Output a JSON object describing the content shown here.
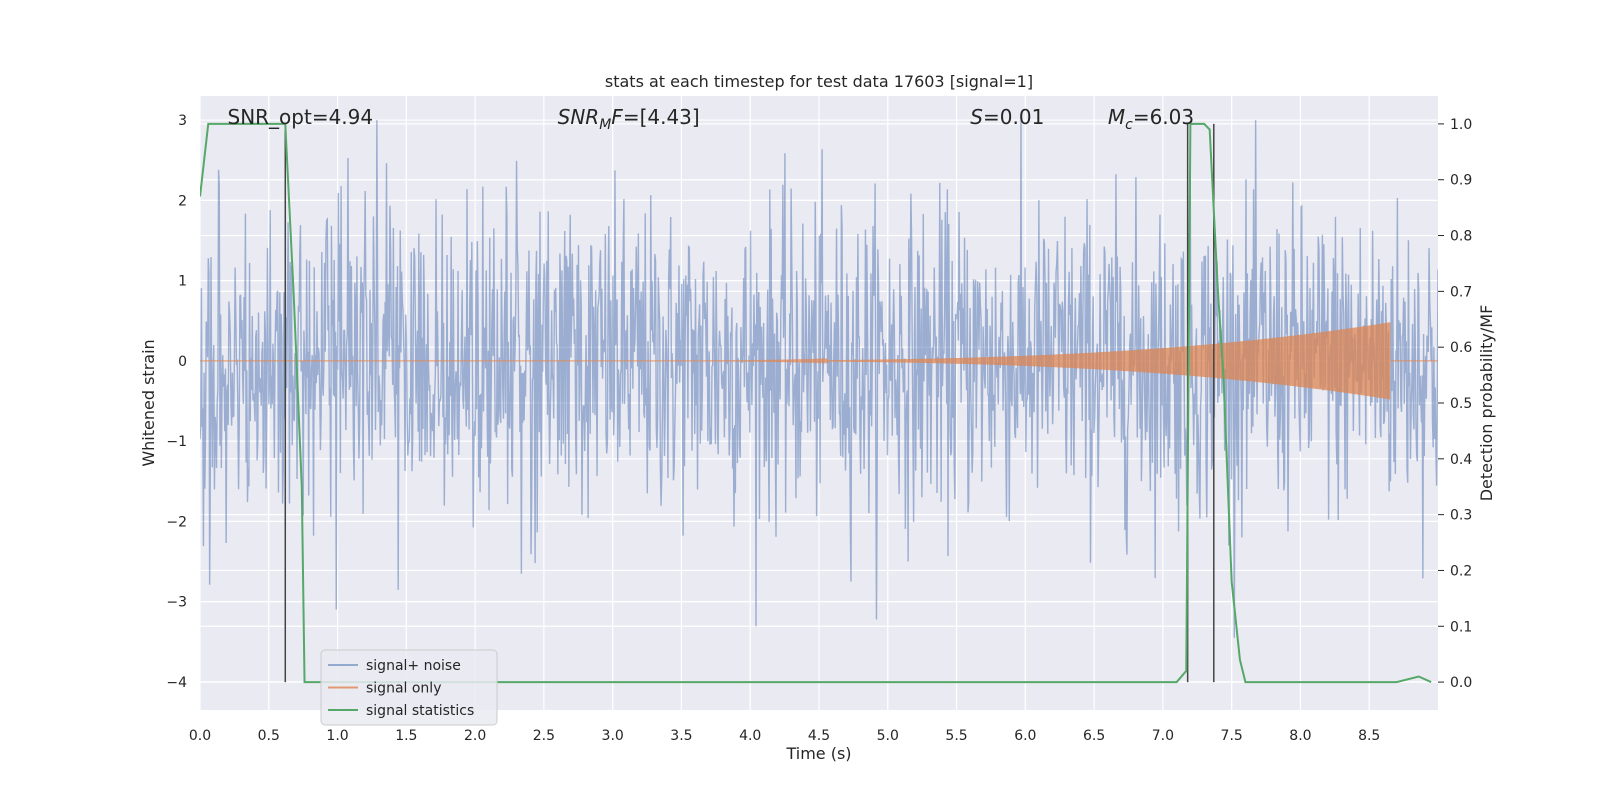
{
  "chart_data": {
    "type": "line",
    "title": "stats at each timestep for test data 17603 [signal=1]",
    "xlabel": "Time (s)",
    "ylabel_left": "Whitened strain",
    "ylabel_right": "Detection probability/MF",
    "xlim": [
      0.0,
      9.0
    ],
    "ylim_left": [
      -4.35,
      3.3
    ],
    "ylim_right": [
      -0.05,
      1.05
    ],
    "xticks": [
      "0.0",
      "0.5",
      "1.0",
      "1.5",
      "2.0",
      "2.5",
      "3.0",
      "3.5",
      "4.0",
      "4.5",
      "5.0",
      "5.5",
      "6.0",
      "6.5",
      "7.0",
      "7.5",
      "8.0",
      "8.5"
    ],
    "yticks_left": [
      "3",
      "2",
      "1",
      "0",
      "−1",
      "−2",
      "−3",
      "−4"
    ],
    "yticks_right": [
      "1.0",
      "0.9",
      "0.8",
      "0.7",
      "0.6",
      "0.5",
      "0.4",
      "0.3",
      "0.2",
      "0.1",
      "0.0"
    ],
    "grid": true,
    "legend_position": "lower-left",
    "colors": {
      "background": "#eaeaf2",
      "noise": "#4c72b0",
      "signal": "#dd8452",
      "stats": "#55a868",
      "vline": "#444444"
    },
    "annotations": [
      {
        "text": "SNR_opt=4.94",
        "x": 0.2
      },
      {
        "text": "SNR_MF=[4.43]",
        "x": 2.6
      },
      {
        "text": "S=0.01",
        "x": 5.6
      },
      {
        "text": "M_c=6.03",
        "x": 6.6
      }
    ],
    "vertical_lines_x": [
      0.62,
      7.18,
      7.37
    ],
    "series": [
      {
        "name": "signal+ noise",
        "axis": "left",
        "description_stats": {
          "x_range": [
            0.0,
            9.0
          ],
          "typical_band": [
            -1.6,
            1.6
          ],
          "max": 3.0,
          "min": -3.45
        }
      },
      {
        "name": "signal only",
        "axis": "left",
        "chirp": {
          "start_x": 3.0,
          "end_x": 8.65,
          "peak_amplitude": 0.48
        }
      },
      {
        "name": "signal statistics",
        "axis": "right",
        "x": [
          0.0,
          0.06,
          0.12,
          0.6,
          0.62,
          0.68,
          0.74,
          0.76,
          0.82,
          7.1,
          7.17,
          7.2,
          7.24,
          7.3,
          7.34,
          7.4,
          7.44,
          7.5,
          7.56,
          7.6,
          7.66,
          7.7,
          8.7,
          8.86,
          8.95
        ],
        "values": [
          0.87,
          1.0,
          1.0,
          1.0,
          1.0,
          0.7,
          0.35,
          0.0,
          0.0,
          0.0,
          0.02,
          1.0,
          1.0,
          1.0,
          0.99,
          0.7,
          0.55,
          0.18,
          0.04,
          0.0,
          0.0,
          0.0,
          0.0,
          0.01,
          0.0
        ]
      }
    ]
  }
}
